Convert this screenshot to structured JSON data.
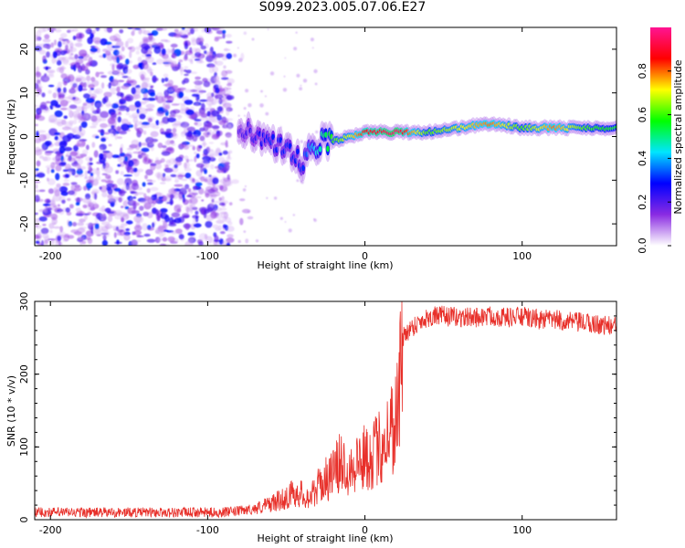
{
  "title": "S099.2023.005.07.06.E27",
  "chart_data": [
    {
      "type": "heatmap",
      "xlabel": "Height of straight line (km)",
      "ylabel": "Frequency (Hz)",
      "xlim": [
        -210,
        160
      ],
      "ylim": [
        -25,
        25
      ],
      "x_ticks": [
        -200,
        -100,
        0,
        100
      ],
      "y_ticks": [
        -20,
        -10,
        0,
        10,
        20
      ],
      "colorbar": {
        "label": "Normalized spectral amplitude",
        "range": [
          0,
          1
        ],
        "ticks": [
          0.0,
          0.2,
          0.4,
          0.6,
          0.8
        ],
        "colormap": [
          "#ffffff",
          "#8a2be2",
          "#0000ff",
          "#00e5ff",
          "#00ff00",
          "#ffff00",
          "#ff0000",
          "#ff1493"
        ]
      },
      "carrier": {
        "x": [
          -80,
          -70,
          -60,
          -50,
          -40,
          -30,
          -20,
          -10,
          0,
          20,
          40,
          60,
          80,
          100,
          120,
          140,
          160
        ],
        "frequency": [
          3,
          1,
          -2,
          -4,
          -6,
          -2,
          -1,
          0,
          1,
          1,
          1,
          2,
          3,
          2,
          2,
          2,
          2
        ],
        "peak_amplitude": [
          0.2,
          0.25,
          0.3,
          0.3,
          0.3,
          0.45,
          0.6,
          0.7,
          0.85,
          0.95,
          0.6,
          0.7,
          0.8,
          0.6,
          0.8,
          0.6,
          0.55
        ]
      }
    },
    {
      "type": "line",
      "xlabel": "Height of straight line (km)",
      "ylabel": "SNR (10 * v/v)",
      "xlim": [
        -210,
        160
      ],
      "ylim": [
        0,
        300
      ],
      "x_ticks": [
        -200,
        -100,
        0,
        100
      ],
      "y_ticks": [
        0,
        100,
        200,
        300
      ],
      "color": "#e8302a",
      "x": [
        -210,
        -190,
        -170,
        -150,
        -130,
        -110,
        -90,
        -80,
        -70,
        -60,
        -50,
        -45,
        -40,
        -35,
        -30,
        -25,
        -20,
        -15,
        -10,
        -5,
        0,
        5,
        10,
        15,
        20,
        22,
        24,
        25,
        26,
        28,
        30,
        35,
        40,
        45,
        50,
        60,
        70,
        80,
        90,
        100,
        110,
        120,
        130,
        140,
        150,
        160
      ],
      "y": [
        10,
        10,
        10,
        10,
        10,
        10,
        10,
        12,
        15,
        22,
        30,
        38,
        35,
        30,
        45,
        55,
        65,
        80,
        70,
        80,
        85,
        90,
        100,
        120,
        140,
        190,
        245,
        255,
        258,
        260,
        265,
        272,
        278,
        280,
        280,
        278,
        278,
        280,
        278,
        279,
        275,
        275,
        272,
        270,
        268,
        265
      ]
    }
  ]
}
